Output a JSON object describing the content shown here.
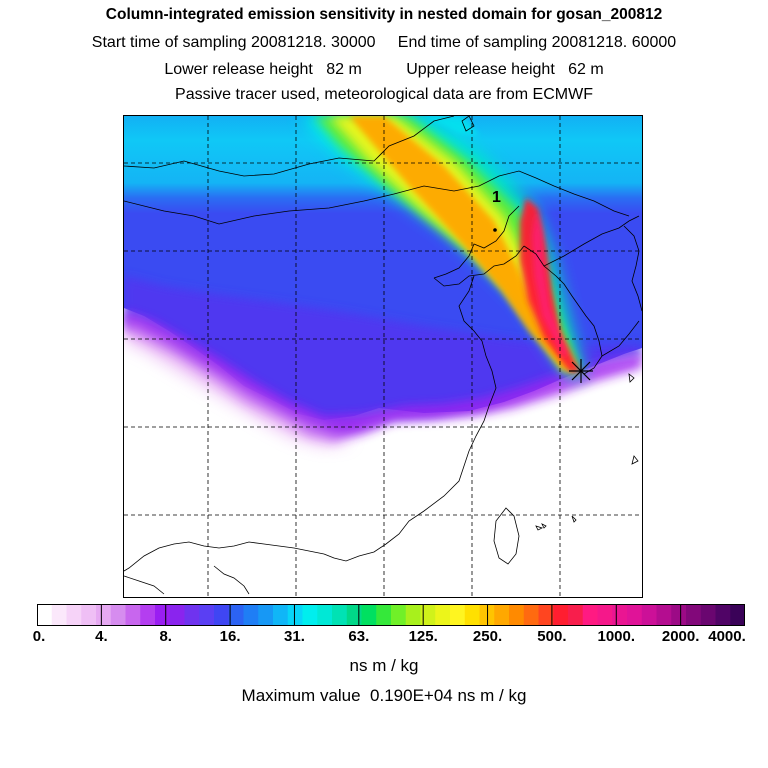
{
  "header": {
    "title": "Column-integrated emission sensitivity in nested domain for gosan_200812",
    "line2": "Start time of sampling 20081218. 30000     End time of sampling 20081218. 60000",
    "line3": "Lower release height   82 m          Upper release height   62 m",
    "line4": "Passive tracer used, meteorological data are from ECMWF"
  },
  "map": {
    "marker_label": "1",
    "receptor": "gosan"
  },
  "colorbar": {
    "tick_labels": [
      "0.",
      "4.",
      "8.",
      "16.",
      "31.",
      "63.",
      "125.",
      "250.",
      "500.",
      "1000.",
      "2000.",
      "4000."
    ],
    "colors": [
      "#ffffff",
      "#fbe8fb",
      "#f6d3f8",
      "#efbff5",
      "#e6a9f2",
      "#d68cef",
      "#c866ee",
      "#b43ef0",
      "#9a1ef2",
      "#8a24ee",
      "#6f33ef",
      "#5a3ff3",
      "#3f46f3",
      "#2c63f3",
      "#1f7ef5",
      "#1798f5",
      "#10b6f7",
      "#08d5f8",
      "#00eeee",
      "#00e8d6",
      "#00e2b4",
      "#00d888",
      "#00e060",
      "#35e83a",
      "#70f028",
      "#a8f01c",
      "#d0f21a",
      "#ecf51a",
      "#fff520",
      "#ffe000",
      "#ffc400",
      "#ffa800",
      "#ff8a00",
      "#ff6a10",
      "#ff4520",
      "#ff1e30",
      "#f81e4c",
      "#ff1a82",
      "#f5188a",
      "#ea1592",
      "#e01398",
      "#cc1098",
      "#b40d90",
      "#9c0a86",
      "#82087a",
      "#6a0670",
      "#500466",
      "#3a0258"
    ],
    "units": "ns m / kg",
    "maximum_text": "Maximum value  0.190E+04 ns m / kg"
  }
}
